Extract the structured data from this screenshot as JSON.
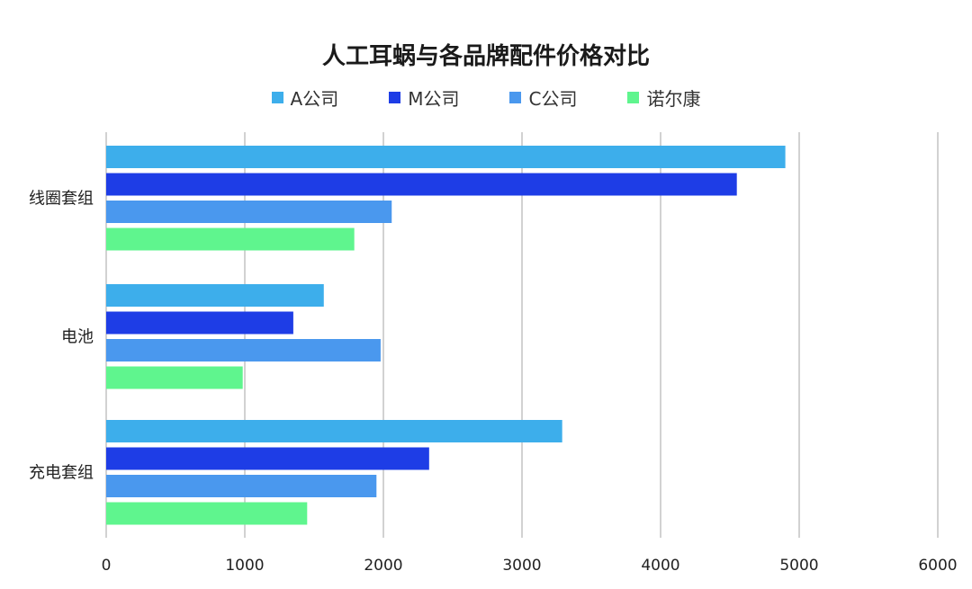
{
  "chart_data": {
    "type": "bar",
    "orientation": "horizontal",
    "title": "人工耳蜗与各品牌配件价格对比",
    "categories": [
      "线圈套组",
      "电池",
      "充电套组"
    ],
    "series": [
      {
        "name": "A公司",
        "color": "#3DAEEB",
        "values": [
          4900,
          1570,
          3290
        ]
      },
      {
        "name": "M公司",
        "color": "#1E3DE6",
        "values": [
          4550,
          1350,
          2330
        ]
      },
      {
        "name": "C公司",
        "color": "#4A98EE",
        "values": [
          2060,
          1980,
          1950
        ]
      },
      {
        "name": "诺尔康",
        "color": "#5FF58E",
        "values": [
          1790,
          985,
          1450
        ]
      }
    ],
    "xlim": [
      0,
      6000
    ],
    "xticks": [
      "0",
      "1000",
      "2000",
      "3000",
      "4000",
      "5000",
      "6000"
    ],
    "xlabel": "",
    "ylabel": "",
    "grid": "vertical",
    "legend": "top-center"
  }
}
